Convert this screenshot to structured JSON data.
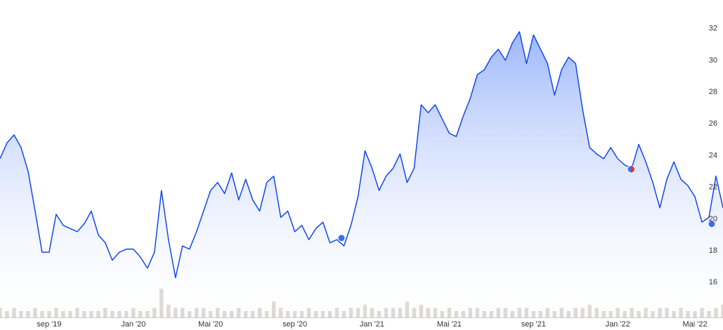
{
  "chart_data": {
    "type": "area",
    "categories": [
      null,
      null,
      null,
      null,
      null,
      null,
      null,
      "sep '19",
      null,
      null,
      null,
      null,
      null,
      null,
      null,
      null,
      null,
      null,
      null,
      "Jan '20",
      null,
      null,
      null,
      null,
      null,
      null,
      null,
      null,
      null,
      null,
      "Mai '20",
      null,
      null,
      null,
      null,
      null,
      null,
      null,
      null,
      null,
      null,
      null,
      "sep '20",
      null,
      null,
      null,
      null,
      null,
      null,
      null,
      null,
      null,
      null,
      "Jan '21",
      null,
      null,
      null,
      null,
      null,
      null,
      null,
      null,
      null,
      null,
      "Mai '21",
      null,
      null,
      null,
      null,
      null,
      null,
      null,
      null,
      null,
      null,
      null,
      "sep '21",
      null,
      null,
      null,
      null,
      null,
      null,
      null,
      null,
      null,
      null,
      null,
      "Jan '22",
      null,
      null,
      null,
      null,
      null,
      null,
      null,
      null,
      null,
      null,
      "Mai '22",
      null,
      null,
      null,
      null
    ],
    "series": [
      {
        "color": "#1447f0",
        "values": [
          23.8,
          24.8,
          25.3,
          24.5,
          23.0,
          20.5,
          17.9,
          17.9,
          20.3,
          19.6,
          19.4,
          19.2,
          19.7,
          20.5,
          19.0,
          18.5,
          17.4,
          17.9,
          18.1,
          18.1,
          17.6,
          16.9,
          17.9,
          21.8,
          18.7,
          16.3,
          18.3,
          18.1,
          19.2,
          20.5,
          21.8,
          22.3,
          21.6,
          22.9,
          21.2,
          22.5,
          21.2,
          20.5,
          22.3,
          22.7,
          20.1,
          20.5,
          19.2,
          19.6,
          18.7,
          19.4,
          19.8,
          18.5,
          18.7,
          18.3,
          19.6,
          21.4,
          24.3,
          23.2,
          21.8,
          22.7,
          23.2,
          24.1,
          22.3,
          23.2,
          27.2,
          26.7,
          27.2,
          26.3,
          25.4,
          25.2,
          26.5,
          27.6,
          29.1,
          29.4,
          30.2,
          30.7,
          30.0,
          31.1,
          31.8,
          29.8,
          31.6,
          30.7,
          29.8,
          27.8,
          29.4,
          30.2,
          29.8,
          26.9,
          24.5,
          24.1,
          23.8,
          24.5,
          23.8,
          23.4,
          23.2,
          24.7,
          23.6,
          22.3,
          20.7,
          22.5,
          23.6,
          22.5,
          22.1,
          21.4,
          19.8,
          20.1,
          22.7,
          20.7
        ]
      },
      {
        "color": "#d3d1cc",
        "axis": "y2",
        "values": [
          3,
          2,
          3,
          2,
          2,
          3,
          2,
          2,
          3,
          2,
          2,
          3,
          2,
          2,
          2,
          3,
          2,
          2,
          2,
          3,
          2,
          2,
          3,
          9,
          4,
          3,
          3,
          2,
          3,
          3,
          2,
          3,
          2,
          2,
          3,
          2,
          2,
          3,
          2,
          5,
          3,
          2,
          2,
          2,
          3,
          2,
          2,
          2,
          3,
          2,
          3,
          3,
          4,
          3,
          2,
          3,
          3,
          3,
          5,
          3,
          4,
          3,
          3,
          2,
          3,
          2,
          2,
          3,
          3,
          2,
          2,
          3,
          3,
          2,
          3,
          3,
          2,
          2,
          3,
          2,
          3,
          2,
          3,
          3,
          4,
          3,
          2,
          2,
          3,
          2,
          3,
          2,
          3,
          2,
          3,
          3,
          2,
          3,
          2,
          2,
          3,
          2,
          3,
          4
        ]
      }
    ],
    "ylim": [
      13.8,
      33.8
    ],
    "yticks": [
      16,
      18,
      20,
      22,
      24,
      26,
      28,
      30,
      32
    ],
    "y2lim": [
      0,
      100
    ]
  }
}
